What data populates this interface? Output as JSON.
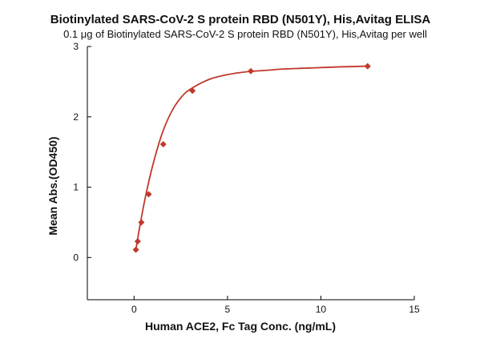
{
  "chart_data": {
    "type": "scatter",
    "title": "Biotinylated SARS-CoV-2 S protein RBD (N501Y), His,Avitag ELISA",
    "subtitle": "0.1 μg of Biotinylated SARS-CoV-2 S protein RBD (N501Y), His,Avitag per well",
    "xlabel": "Human ACE2, Fc Tag Conc. (ng/mL)",
    "ylabel": "Mean Abs.(OD450)",
    "xlim": [
      -2.5,
      15
    ],
    "ylim": [
      -0.6,
      3
    ],
    "x_ticks": [
      0,
      5,
      10,
      15
    ],
    "y_ticks": [
      0,
      1,
      2,
      3
    ],
    "grid": false,
    "marker_color": "#c0392b",
    "fit_color": "#c0392b",
    "series": [
      {
        "x": [
          0.098,
          0.195,
          0.391,
          0.781,
          1.563,
          3.125,
          6.25,
          12.5
        ],
        "y": [
          0.11,
          0.23,
          0.5,
          0.9,
          1.61,
          2.37,
          2.65,
          2.72
        ]
      }
    ],
    "fit": {
      "x": [
        0.098,
        0.3,
        0.6,
        1.0,
        1.5,
        2.0,
        2.5,
        3.0,
        4.0,
        5.0,
        6.0,
        7.0,
        8.0,
        9.0,
        10.0,
        11.0,
        12.5
      ],
      "y": [
        0.11,
        0.43,
        0.85,
        1.31,
        1.76,
        2.07,
        2.27,
        2.39,
        2.53,
        2.6,
        2.64,
        2.66,
        2.68,
        2.69,
        2.7,
        2.71,
        2.72
      ]
    }
  }
}
